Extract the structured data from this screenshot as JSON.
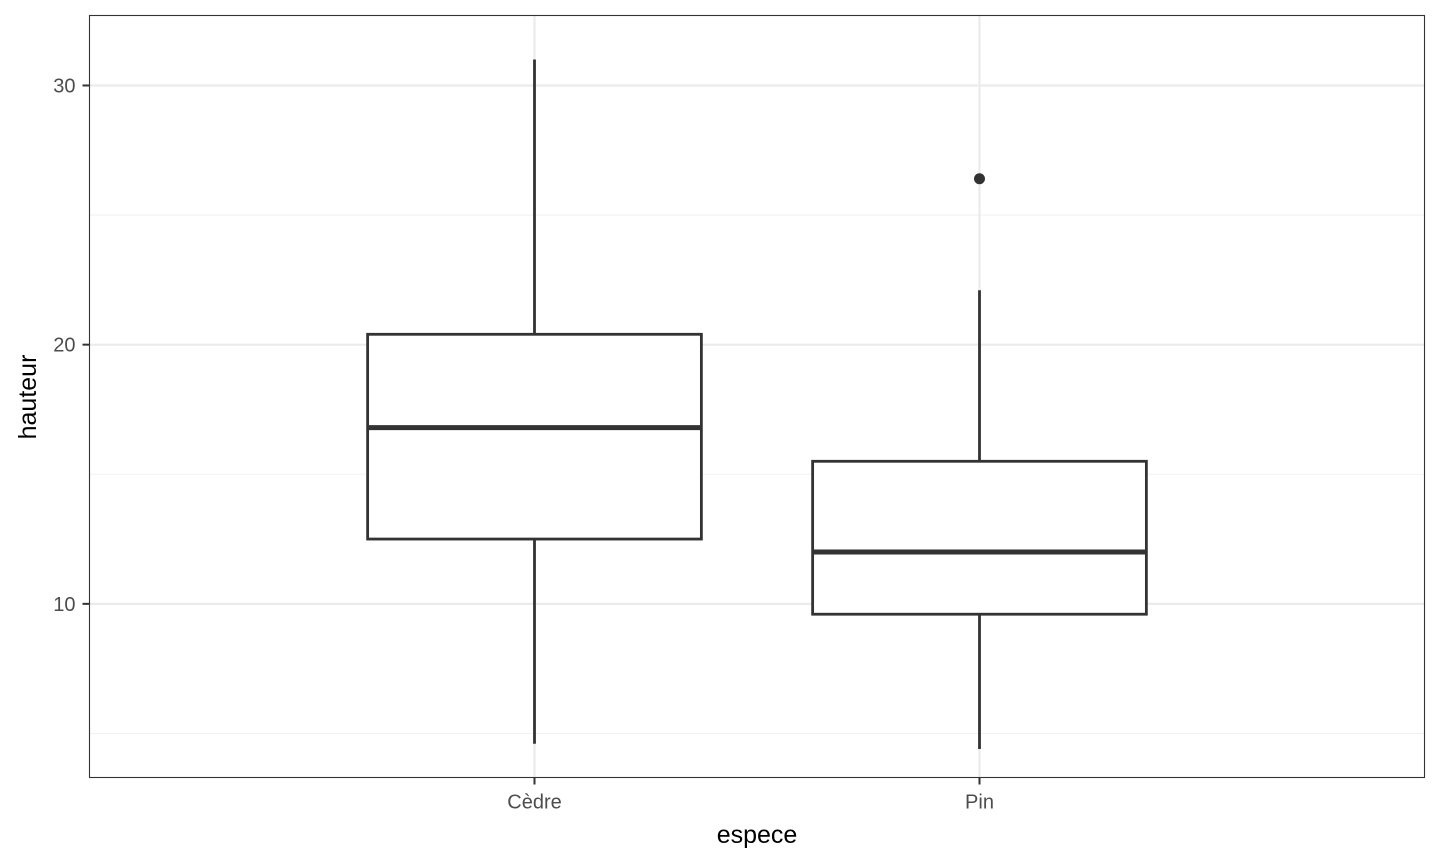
{
  "chart_data": {
    "type": "boxplot",
    "title": "",
    "xlabel": "espece",
    "ylabel": "hauteur",
    "ylim": [
      3.3,
      32.7
    ],
    "y_ticks": [
      10,
      20,
      30
    ],
    "y_minor_ticks": [
      5,
      15,
      25
    ],
    "grid": true,
    "theme": "bw",
    "categories": [
      "Cèdre",
      "Pin"
    ],
    "boxes": [
      {
        "category": "Cèdre",
        "whisker_low": 4.6,
        "q1": 12.5,
        "median": 16.8,
        "q3": 20.4,
        "whisker_high": 31.0,
        "outliers": []
      },
      {
        "category": "Pin",
        "whisker_low": 4.4,
        "q1": 9.6,
        "median": 12.0,
        "q3": 15.5,
        "whisker_high": 22.1,
        "outliers": [
          26.4
        ]
      }
    ],
    "colors": {
      "box_stroke": "#333333",
      "box_fill": "#ffffff",
      "grid_major": "#ebebeb",
      "grid_minor": "#f2f2f2",
      "panel_border": "#333333",
      "tick_label": "#4d4d4d"
    }
  }
}
